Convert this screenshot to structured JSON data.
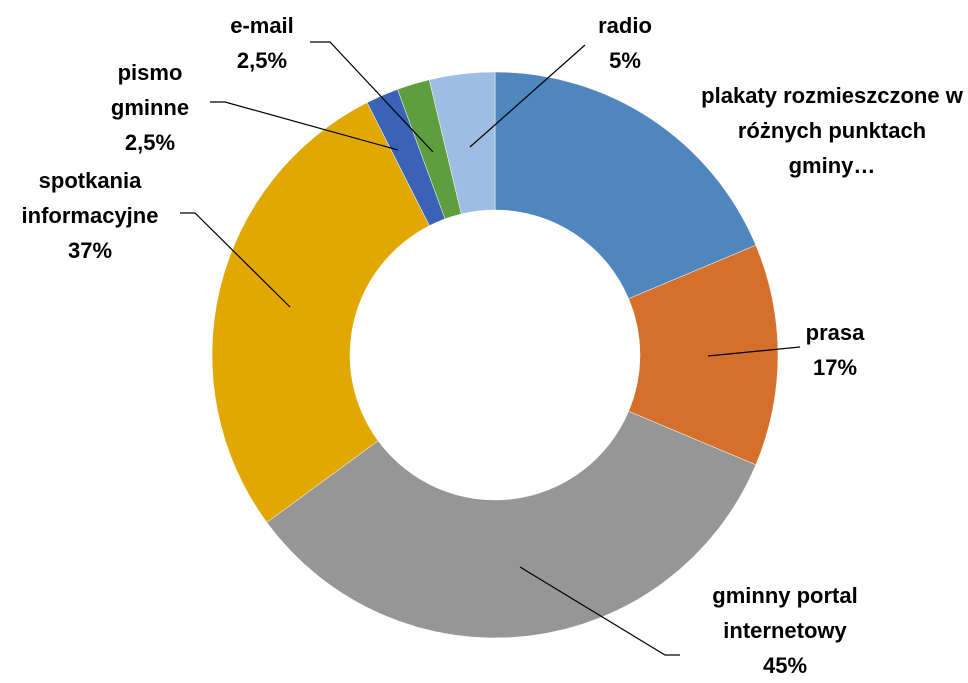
{
  "chart_data": {
    "type": "donut",
    "categories": [
      "plakaty rozmieszczone w różnych punktach gminy…",
      "prasa",
      "gminny portal internetowy",
      "spotkania informacyjne",
      "pismo gminne",
      "e-mail",
      "radio"
    ],
    "values": [
      25,
      17,
      45,
      37,
      2.5,
      2.5,
      5
    ],
    "value_labels": [
      null,
      "17%",
      "45%",
      "37%",
      "2,5%",
      "2,5%",
      "5%"
    ],
    "colors": [
      "#4f86bd",
      "#d4702b",
      "#969696",
      "#e0a800",
      "#3a63b8",
      "#5f9e3e",
      "#9dbde3"
    ]
  }
}
